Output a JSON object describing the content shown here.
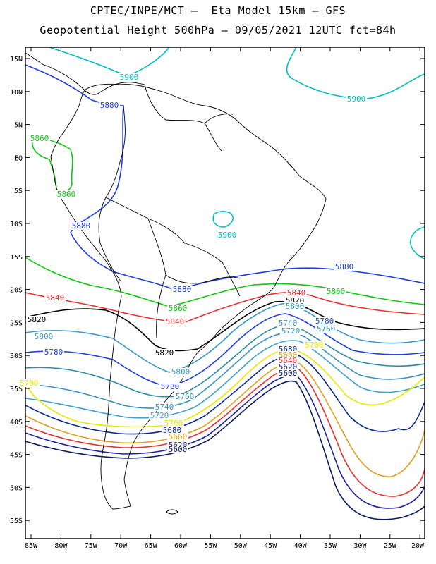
{
  "title_line1": "CPTEC/INPE/MCT –  Eta Model 15km – GFS",
  "title_line2": "Geopotential Height 500hPa – 09/05/2021 12UTC fct=84h",
  "lat_ticks": [
    "15N",
    "10N",
    "5N",
    "EQ",
    "5S",
    "10S",
    "15S",
    "20S",
    "25S",
    "30S",
    "35S",
    "40S",
    "45S",
    "50S",
    "55S"
  ],
  "lon_ticks": [
    "85W",
    "80W",
    "75W",
    "70W",
    "65W",
    "60W",
    "55W",
    "50W",
    "45W",
    "40W",
    "35W",
    "30W",
    "25W",
    "20W"
  ],
  "colors": {
    "c5900": "#00bfbf",
    "c5880": "#1f3fe0",
    "c5860": "#10c810",
    "c5840": "#e83030",
    "c5820": "#000000",
    "c5800": "#3a9ac8",
    "c5780": "#1f3fe0",
    "c5760": "#2f8aa8",
    "c5740": "#3a90c0",
    "c5720": "#40a0d0",
    "c5700": "#e8e800",
    "c5680": "#0a2a90",
    "c5660": "#e0a020",
    "c5640": "#e83030",
    "c5620": "#2020a0",
    "c5600": "#0a1a60"
  },
  "labels": [
    {
      "t": "5900",
      "c": "c5900"
    },
    {
      "t": "5900",
      "c": "c5900"
    },
    {
      "t": "5900",
      "c": "c5900"
    },
    {
      "t": "5880",
      "c": "c5880"
    },
    {
      "t": "5880",
      "c": "c5880"
    },
    {
      "t": "5880",
      "c": "c5880"
    },
    {
      "t": "5880",
      "c": "c5880"
    },
    {
      "t": "5860",
      "c": "c5860"
    },
    {
      "t": "5860",
      "c": "c5860"
    },
    {
      "t": "5860",
      "c": "c5860"
    },
    {
      "t": "5860",
      "c": "c5860"
    },
    {
      "t": "5840",
      "c": "c5840"
    },
    {
      "t": "5840",
      "c": "c5840"
    },
    {
      "t": "5840",
      "c": "c5840"
    },
    {
      "t": "5820",
      "c": "c5820"
    },
    {
      "t": "5820",
      "c": "c5820"
    },
    {
      "t": "5820",
      "c": "c5820"
    },
    {
      "t": "5800",
      "c": "c5800"
    },
    {
      "t": "5800",
      "c": "c5800"
    },
    {
      "t": "5800",
      "c": "c5800"
    },
    {
      "t": "5780",
      "c": "c5780"
    },
    {
      "t": "5780",
      "c": "c5780"
    },
    {
      "t": "5780",
      "c": "c5780"
    },
    {
      "t": "5760",
      "c": "c5760"
    },
    {
      "t": "5760",
      "c": "c5760"
    },
    {
      "t": "5740",
      "c": "c5740"
    },
    {
      "t": "5740",
      "c": "c5740"
    },
    {
      "t": "5720",
      "c": "c5720"
    },
    {
      "t": "5720",
      "c": "c5720"
    },
    {
      "t": "5700",
      "c": "c5700"
    },
    {
      "t": "5700",
      "c": "c5700"
    },
    {
      "t": "5700",
      "c": "c5700"
    },
    {
      "t": "5680",
      "c": "c5680"
    },
    {
      "t": "5680",
      "c": "c5680"
    },
    {
      "t": "5660",
      "c": "c5660"
    },
    {
      "t": "5660",
      "c": "c5660"
    },
    {
      "t": "5640",
      "c": "c5640"
    },
    {
      "t": "5640",
      "c": "c5640"
    },
    {
      "t": "5620",
      "c": "c5620"
    },
    {
      "t": "5620",
      "c": "c5620"
    },
    {
      "t": "5600",
      "c": "c5600"
    },
    {
      "t": "5600",
      "c": "c5600"
    }
  ]
}
